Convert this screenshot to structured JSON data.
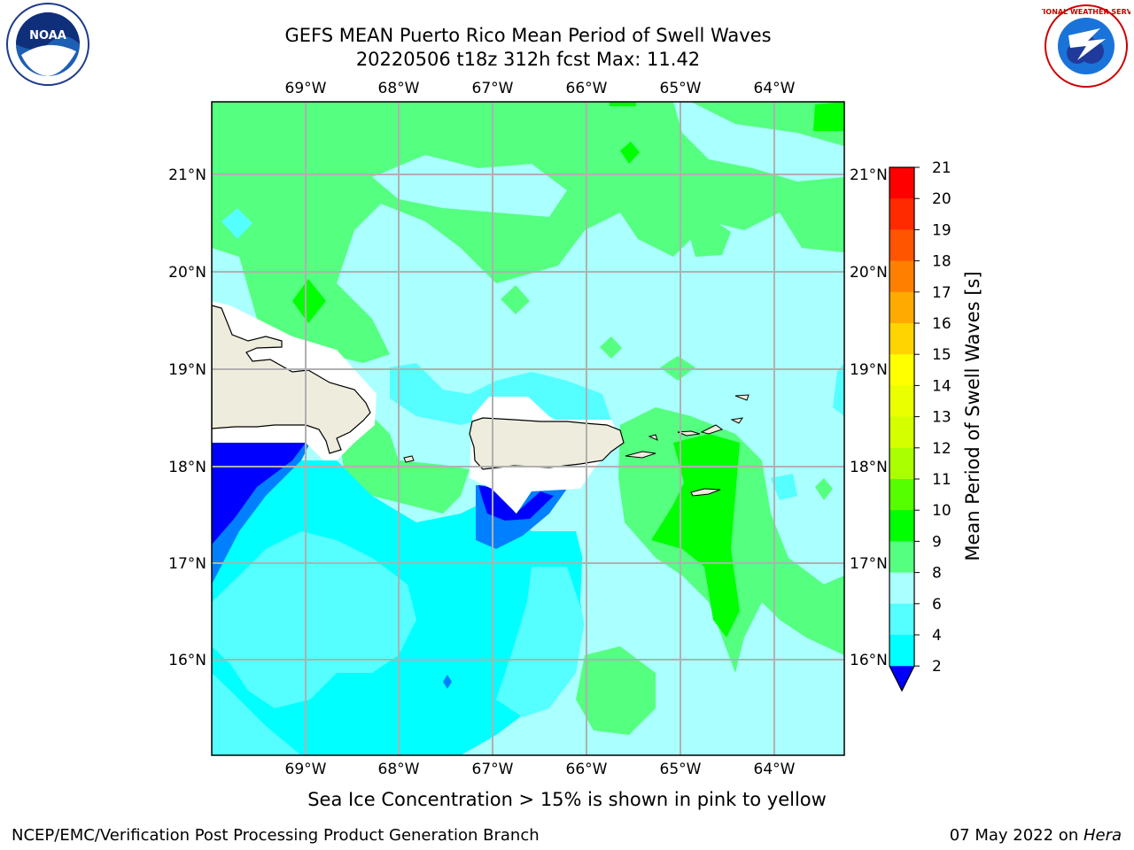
{
  "title": {
    "line1": "GEFS MEAN Puerto Rico Mean Period of Swell Waves",
    "line2": "20220506 t18z 312h fcst   Max: 11.42"
  },
  "axes": {
    "lon_labels": [
      "69°W",
      "68°W",
      "67°W",
      "66°W",
      "65°W",
      "64°W"
    ],
    "lat_labels": [
      "21°N",
      "20°N",
      "19°N",
      "18°N",
      "17°N",
      "16°N"
    ]
  },
  "colorbar": {
    "label": "Mean Period of Swell Waves [s]",
    "ticks": [
      "21",
      "20",
      "19",
      "18",
      "17",
      "16",
      "15",
      "14",
      "13",
      "12",
      "11",
      "10",
      "9",
      "8",
      "6",
      "4",
      "2"
    ],
    "colors": [
      "#ff0000",
      "#ff2a00",
      "#ff5500",
      "#ff8000",
      "#ffaa00",
      "#ffd400",
      "#ffff00",
      "#eaff00",
      "#d4ff00",
      "#aaff00",
      "#55ff00",
      "#00ff00",
      "#55ff80",
      "#aaffff",
      "#55ffff",
      "#00ffff",
      "#0080ff",
      "#0000ff"
    ]
  },
  "map_colors": {
    "land": "#eeecdc",
    "c2_4": "#0000ff",
    "c4_6": "#0080ff",
    "c6_8": "#00ffff",
    "c8_9": "#55ffff",
    "c9_10": "#aaffff",
    "c10_11": "#55ff80",
    "c11_12": "#00ff00"
  },
  "note": "Sea Ice Concentration > 15% is shown in pink to yellow",
  "footer": {
    "left": "NCEP/EMC/Verification Post Processing Product Generation Branch",
    "right_prefix": "07 May 2022 on ",
    "right_system": "Hera"
  },
  "logos": {
    "left_text": "NOAA",
    "right_text": "NATIONAL WEATHER SERVICE"
  }
}
